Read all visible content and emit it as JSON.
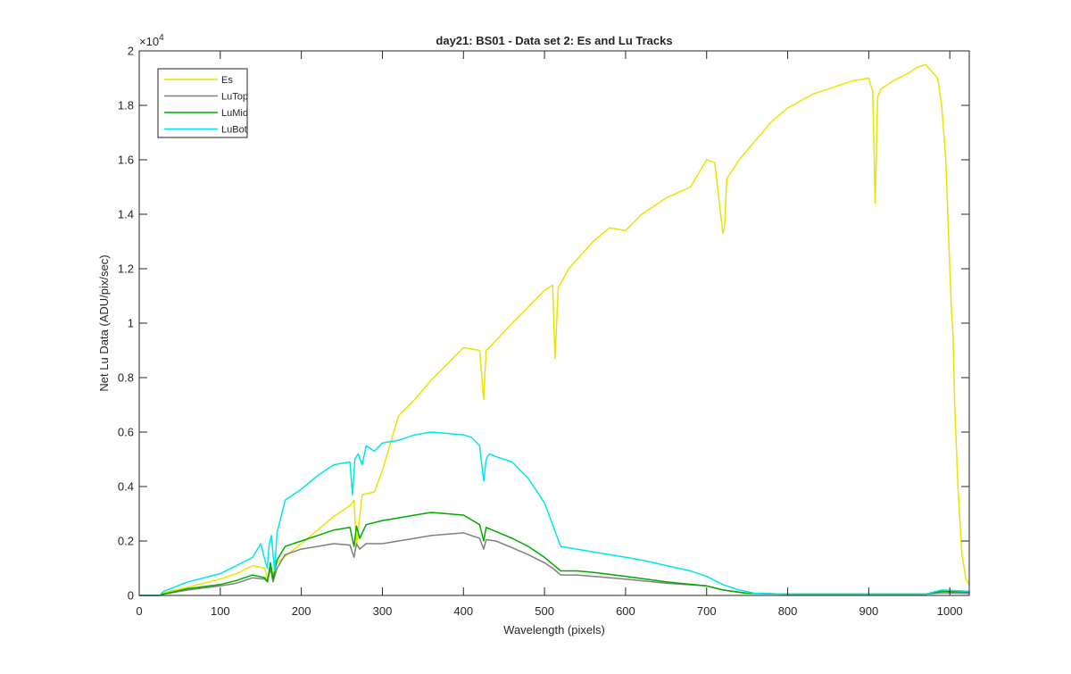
{
  "chart_data": {
    "type": "line",
    "title": "day21: BS01 - Data set 2: Es and Lu Tracks",
    "xlabel": "Wavelength (pixels)",
    "ylabel": "Net Lu Data (ADU/pix/sec)",
    "y_multiplier": "×10",
    "y_multiplier_exponent": "4",
    "xlim": [
      0,
      1024
    ],
    "ylim": [
      0,
      20000
    ],
    "x_ticks": [
      0,
      100,
      200,
      300,
      400,
      500,
      600,
      700,
      800,
      900,
      1000
    ],
    "y_ticks": [
      0,
      2000,
      4000,
      6000,
      8000,
      10000,
      12000,
      14000,
      16000,
      18000,
      20000
    ],
    "x_tick_labels": [
      "0",
      "100",
      "200",
      "300",
      "400",
      "500",
      "600",
      "700",
      "800",
      "900",
      "1000"
    ],
    "y_tick_labels": [
      "0",
      "0.2",
      "0.4",
      "0.6",
      "0.8",
      "1",
      "1.2",
      "1.4",
      "1.6",
      "1.8",
      "2"
    ],
    "grid": false,
    "legend_position": "top-left",
    "series": [
      {
        "name": "Es",
        "color": "#e6e600",
        "x": [
          0,
          25,
          30,
          60,
          100,
          120,
          140,
          155,
          158,
          162,
          165,
          170,
          200,
          220,
          240,
          260,
          265,
          268,
          275,
          290,
          300,
          320,
          340,
          360,
          380,
          400,
          420,
          425,
          428,
          432,
          460,
          480,
          500,
          510,
          513,
          517,
          530,
          560,
          580,
          600,
          620,
          650,
          680,
          700,
          710,
          720,
          722,
          725,
          740,
          760,
          780,
          800,
          830,
          860,
          880,
          900,
          905,
          908,
          911,
          915,
          930,
          950,
          960,
          970,
          985,
          990,
          995,
          1000,
          1002,
          1004,
          1006,
          1010,
          1015,
          1020,
          1024
        ],
        "y": [
          0,
          0,
          100,
          300,
          600,
          800,
          1100,
          1000,
          600,
          1000,
          800,
          1200,
          1900,
          2400,
          2900,
          3300,
          3500,
          1800,
          3700,
          3800,
          4600,
          6600,
          7200,
          7900,
          8500,
          9100,
          9000,
          7200,
          9000,
          9100,
          10000,
          10600,
          11200,
          11400,
          8700,
          11300,
          12000,
          13000,
          13500,
          13400,
          14000,
          14600,
          15000,
          16000,
          15900,
          13300,
          13500,
          15300,
          16000,
          16700,
          17400,
          17900,
          18400,
          18700,
          18900,
          19000,
          18500,
          14400,
          18300,
          18600,
          18900,
          19200,
          19400,
          19500,
          19000,
          18000,
          16000,
          12000,
          10500,
          9600,
          7000,
          4000,
          1500,
          600,
          400
        ]
      },
      {
        "name": "LuTop",
        "color": "#808080",
        "x": [
          0,
          25,
          30,
          60,
          100,
          120,
          140,
          155,
          158,
          162,
          165,
          170,
          180,
          200,
          220,
          240,
          260,
          265,
          268,
          272,
          280,
          300,
          320,
          340,
          360,
          380,
          400,
          420,
          425,
          428,
          440,
          460,
          480,
          500,
          510,
          520,
          540,
          560,
          600,
          650,
          700,
          720,
          750,
          800,
          900,
          970,
          990,
          1024
        ],
        "y": [
          0,
          0,
          50,
          200,
          350,
          450,
          650,
          600,
          500,
          1000,
          500,
          1000,
          1500,
          1700,
          1800,
          1900,
          1850,
          1400,
          1900,
          1700,
          1900,
          1900,
          2000,
          2100,
          2200,
          2250,
          2300,
          2100,
          1700,
          2050,
          2000,
          1750,
          1500,
          1200,
          1000,
          750,
          750,
          700,
          600,
          450,
          350,
          200,
          80,
          50,
          50,
          50,
          100,
          80
        ]
      },
      {
        "name": "LuMid",
        "color": "#00aa00",
        "x": [
          0,
          25,
          30,
          60,
          100,
          120,
          140,
          155,
          158,
          162,
          165,
          170,
          180,
          200,
          220,
          240,
          260,
          265,
          268,
          272,
          280,
          300,
          320,
          340,
          360,
          380,
          400,
          420,
          425,
          428,
          440,
          460,
          480,
          500,
          510,
          520,
          540,
          560,
          600,
          650,
          700,
          720,
          750,
          800,
          900,
          970,
          990,
          1024
        ],
        "y": [
          0,
          0,
          50,
          250,
          400,
          550,
          750,
          650,
          500,
          1200,
          600,
          1300,
          1800,
          2000,
          2200,
          2400,
          2500,
          1800,
          2550,
          2100,
          2600,
          2750,
          2850,
          2950,
          3050,
          3000,
          2950,
          2600,
          2000,
          2500,
          2350,
          2100,
          1800,
          1400,
          1150,
          900,
          900,
          850,
          700,
          500,
          350,
          200,
          80,
          50,
          50,
          50,
          150,
          120
        ]
      },
      {
        "name": "LuBot",
        "color": "#00e5ee",
        "x": [
          0,
          25,
          30,
          60,
          100,
          120,
          140,
          150,
          155,
          158,
          160,
          163,
          167,
          170,
          180,
          200,
          220,
          240,
          260,
          263,
          266,
          270,
          275,
          280,
          290,
          300,
          320,
          340,
          360,
          380,
          400,
          410,
          420,
          425,
          428,
          432,
          440,
          460,
          480,
          500,
          510,
          520,
          540,
          560,
          580,
          600,
          620,
          650,
          680,
          700,
          720,
          740,
          760,
          800,
          900,
          970,
          990,
          1024
        ],
        "y": [
          0,
          0,
          150,
          500,
          800,
          1100,
          1400,
          1900,
          1300,
          1000,
          1800,
          2200,
          900,
          2300,
          3500,
          3900,
          4400,
          4800,
          4900,
          3700,
          5000,
          5200,
          4800,
          5500,
          5300,
          5600,
          5700,
          5900,
          6000,
          5950,
          5900,
          5800,
          5500,
          4200,
          5000,
          5200,
          5100,
          4900,
          4300,
          3400,
          2600,
          1800,
          1700,
          1600,
          1500,
          1400,
          1300,
          1100,
          900,
          700,
          400,
          200,
          80,
          50,
          50,
          50,
          200,
          150
        ]
      }
    ]
  }
}
